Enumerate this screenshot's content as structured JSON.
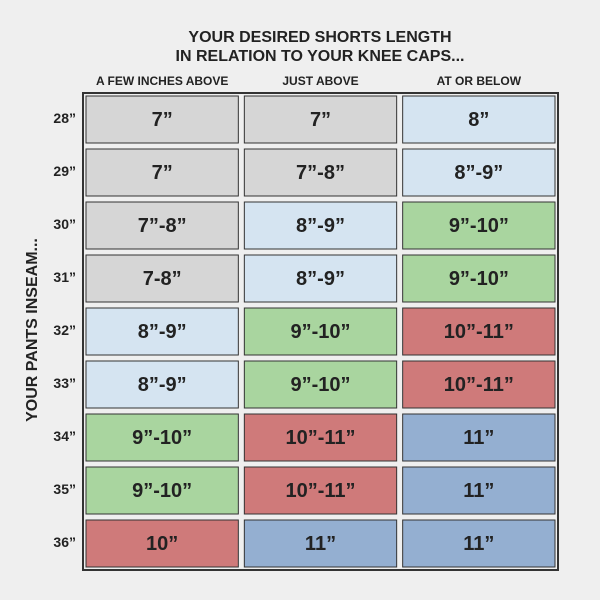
{
  "header": {
    "title": [
      "YOUR DESIRED SHORTS LENGTH",
      "IN RELATION TO YOUR KNEE CAPS..."
    ]
  },
  "table": {
    "row_axis_label": "YOUR PANTS INSEAM...",
    "columns": [
      "A FEW INCHES ABOVE",
      "JUST ABOVE",
      "AT OR BELOW"
    ],
    "rows": [
      {
        "label": "28”",
        "cells": [
          {
            "text": "7”",
            "color": "#d6d6d6"
          },
          {
            "text": "7”",
            "color": "#d6d6d6"
          },
          {
            "text": "8”",
            "color": "#d5e4f1"
          }
        ]
      },
      {
        "label": "29”",
        "cells": [
          {
            "text": "7”",
            "color": "#d6d6d6"
          },
          {
            "text": "7”-8”",
            "color": "#d6d6d6"
          },
          {
            "text": "8”-9”",
            "color": "#d5e4f1"
          }
        ]
      },
      {
        "label": "30”",
        "cells": [
          {
            "text": "7”-8”",
            "color": "#d6d6d6"
          },
          {
            "text": "8”-9”",
            "color": "#d5e4f1"
          },
          {
            "text": "9”-10”",
            "color": "#a9d59f"
          }
        ]
      },
      {
        "label": "31”",
        "cells": [
          {
            "text": "7-8”",
            "color": "#d6d6d6"
          },
          {
            "text": "8”-9”",
            "color": "#d5e4f1"
          },
          {
            "text": "9”-10”",
            "color": "#a9d59f"
          }
        ]
      },
      {
        "label": "32”",
        "cells": [
          {
            "text": "8”-9”",
            "color": "#d5e4f1"
          },
          {
            "text": "9”-10”",
            "color": "#a9d59f"
          },
          {
            "text": "10”-11”",
            "color": "#cf7a7a"
          }
        ]
      },
      {
        "label": "33”",
        "cells": [
          {
            "text": "8”-9”",
            "color": "#d5e4f1"
          },
          {
            "text": "9”-10”",
            "color": "#a9d59f"
          },
          {
            "text": "10”-11”",
            "color": "#cf7a7a"
          }
        ]
      },
      {
        "label": "34”",
        "cells": [
          {
            "text": "9”-10”",
            "color": "#a9d59f"
          },
          {
            "text": "10”-11”",
            "color": "#cf7a7a"
          },
          {
            "text": "11”",
            "color": "#94afd1"
          }
        ]
      },
      {
        "label": "35”",
        "cells": [
          {
            "text": "9”-10”",
            "color": "#a9d59f"
          },
          {
            "text": "10”-11”",
            "color": "#cf7a7a"
          },
          {
            "text": "11”",
            "color": "#94afd1"
          }
        ]
      },
      {
        "label": "36”",
        "cells": [
          {
            "text": "10”",
            "color": "#cf7a7a"
          },
          {
            "text": "11”",
            "color": "#94afd1"
          },
          {
            "text": "11”",
            "color": "#94afd1"
          }
        ]
      }
    ]
  }
}
